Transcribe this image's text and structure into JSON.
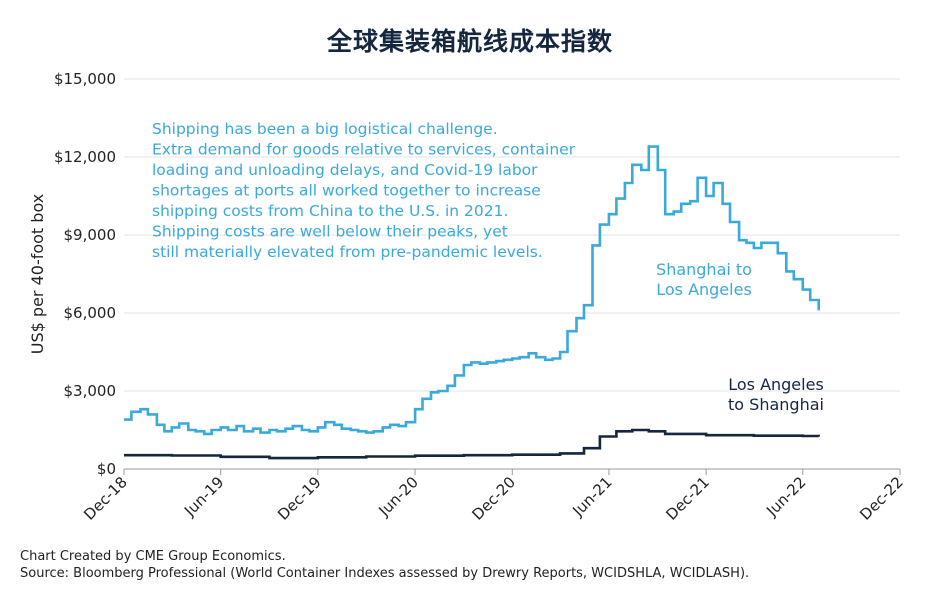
{
  "chart_data": {
    "type": "line",
    "title": "全球集装箱航线成本指数",
    "ylabel": "US$ per 40-foot box",
    "xlabel": "",
    "ylim": [
      0,
      15000
    ],
    "yticks": [
      0,
      3000,
      6000,
      9000,
      12000,
      15000
    ],
    "ytick_labels": [
      "$0",
      "$3,000",
      "$6,000",
      "$9,000",
      "$12,000",
      "$15,000"
    ],
    "xlim": [
      "2018-12-01",
      "2022-12-01"
    ],
    "xticks": [
      "2018-12-01",
      "2019-06-01",
      "2019-12-01",
      "2020-06-01",
      "2020-12-01",
      "2021-06-01",
      "2021-12-01",
      "2022-06-01",
      "2022-12-01"
    ],
    "xtick_labels": [
      "Dec-18",
      "Jun-19",
      "Dec-19",
      "Jun-20",
      "Dec-20",
      "Jun-21",
      "Dec-21",
      "Jun-22",
      "Dec-22"
    ],
    "grid": "horizontal",
    "annotation": [
      "Shipping has been a big logistical challenge.",
      "Extra demand for goods relative to services, container",
      "loading and unloading delays, and Covid-19 labor",
      "shortages at ports all worked together to increase",
      "shipping costs from China to the U.S. in 2021.",
      "Shipping costs are well below their peaks, yet",
      "still materially elevated from pre-pandemic levels."
    ],
    "series": [
      {
        "name": "Shanghai to Los Angeles",
        "label_lines": [
          "Shanghai to",
          "Los Angeles"
        ],
        "color": "#3aa9dc",
        "points": [
          [
            "2018-12-01",
            1900
          ],
          [
            "2018-12-15",
            2200
          ],
          [
            "2019-01-01",
            2300
          ],
          [
            "2019-01-15",
            2100
          ],
          [
            "2019-02-01",
            1700
          ],
          [
            "2019-02-15",
            1450
          ],
          [
            "2019-03-01",
            1600
          ],
          [
            "2019-03-15",
            1750
          ],
          [
            "2019-04-01",
            1500
          ],
          [
            "2019-04-15",
            1450
          ],
          [
            "2019-05-01",
            1350
          ],
          [
            "2019-05-15",
            1500
          ],
          [
            "2019-06-01",
            1600
          ],
          [
            "2019-06-15",
            1500
          ],
          [
            "2019-07-01",
            1650
          ],
          [
            "2019-07-15",
            1450
          ],
          [
            "2019-08-01",
            1550
          ],
          [
            "2019-08-15",
            1400
          ],
          [
            "2019-09-01",
            1500
          ],
          [
            "2019-09-15",
            1450
          ],
          [
            "2019-10-01",
            1550
          ],
          [
            "2019-10-15",
            1650
          ],
          [
            "2019-11-01",
            1500
          ],
          [
            "2019-11-15",
            1450
          ],
          [
            "2019-12-01",
            1600
          ],
          [
            "2019-12-15",
            1800
          ],
          [
            "2020-01-01",
            1700
          ],
          [
            "2020-01-15",
            1550
          ],
          [
            "2020-02-01",
            1500
          ],
          [
            "2020-02-15",
            1450
          ],
          [
            "2020-03-01",
            1400
          ],
          [
            "2020-03-15",
            1450
          ],
          [
            "2020-04-01",
            1600
          ],
          [
            "2020-04-15",
            1700
          ],
          [
            "2020-05-01",
            1650
          ],
          [
            "2020-05-15",
            1800
          ],
          [
            "2020-06-01",
            2300
          ],
          [
            "2020-06-15",
            2700
          ],
          [
            "2020-07-01",
            2950
          ],
          [
            "2020-07-15",
            3000
          ],
          [
            "2020-08-01",
            3200
          ],
          [
            "2020-08-15",
            3600
          ],
          [
            "2020-09-01",
            4000
          ],
          [
            "2020-09-15",
            4100
          ],
          [
            "2020-10-01",
            4050
          ],
          [
            "2020-10-15",
            4100
          ],
          [
            "2020-11-01",
            4150
          ],
          [
            "2020-11-15",
            4200
          ],
          [
            "2020-12-01",
            4250
          ],
          [
            "2020-12-15",
            4300
          ],
          [
            "2021-01-01",
            4450
          ],
          [
            "2021-01-15",
            4300
          ],
          [
            "2021-02-01",
            4200
          ],
          [
            "2021-02-15",
            4250
          ],
          [
            "2021-03-01",
            4500
          ],
          [
            "2021-03-15",
            5300
          ],
          [
            "2021-04-01",
            5800
          ],
          [
            "2021-04-15",
            6300
          ],
          [
            "2021-05-01",
            8600
          ],
          [
            "2021-05-15",
            9400
          ],
          [
            "2021-06-01",
            9800
          ],
          [
            "2021-06-15",
            10400
          ],
          [
            "2021-07-01",
            11000
          ],
          [
            "2021-07-15",
            11700
          ],
          [
            "2021-08-01",
            11500
          ],
          [
            "2021-08-15",
            12400
          ],
          [
            "2021-09-01",
            11500
          ],
          [
            "2021-09-15",
            9800
          ],
          [
            "2021-10-01",
            9900
          ],
          [
            "2021-10-15",
            10200
          ],
          [
            "2021-11-01",
            10300
          ],
          [
            "2021-11-15",
            11200
          ],
          [
            "2021-12-01",
            10500
          ],
          [
            "2021-12-15",
            11000
          ],
          [
            "2022-01-01",
            10200
          ],
          [
            "2022-01-15",
            9500
          ],
          [
            "2022-02-01",
            8800
          ],
          [
            "2022-02-15",
            8700
          ],
          [
            "2022-03-01",
            8500
          ],
          [
            "2022-03-15",
            8700
          ],
          [
            "2022-04-01",
            8700
          ],
          [
            "2022-04-15",
            8300
          ],
          [
            "2022-05-01",
            7600
          ],
          [
            "2022-05-15",
            7300
          ],
          [
            "2022-06-01",
            6900
          ],
          [
            "2022-06-15",
            6500
          ],
          [
            "2022-07-01",
            6100
          ]
        ]
      },
      {
        "name": "Los Angeles to Shanghai",
        "label_lines": [
          "Los Angeles",
          "to Shanghai"
        ],
        "color": "#15263f",
        "points": [
          [
            "2018-12-01",
            530
          ],
          [
            "2019-03-01",
            520
          ],
          [
            "2019-06-01",
            470
          ],
          [
            "2019-09-01",
            420
          ],
          [
            "2019-12-01",
            450
          ],
          [
            "2020-03-01",
            480
          ],
          [
            "2020-06-01",
            510
          ],
          [
            "2020-09-01",
            530
          ],
          [
            "2020-12-01",
            550
          ],
          [
            "2021-03-01",
            600
          ],
          [
            "2021-04-15",
            800
          ],
          [
            "2021-05-15",
            1250
          ],
          [
            "2021-06-15",
            1450
          ],
          [
            "2021-07-15",
            1500
          ],
          [
            "2021-08-15",
            1450
          ],
          [
            "2021-09-15",
            1350
          ],
          [
            "2021-12-01",
            1300
          ],
          [
            "2022-03-01",
            1280
          ],
          [
            "2022-06-01",
            1270
          ],
          [
            "2022-07-01",
            1250
          ]
        ]
      }
    ]
  },
  "footer": {
    "created": "Chart Created by CME Group Economics.",
    "source": "Source: Bloomberg Professional (World Container Indexes assessed by Drewry Reports, WCIDSHLA, WCIDLASH)."
  }
}
